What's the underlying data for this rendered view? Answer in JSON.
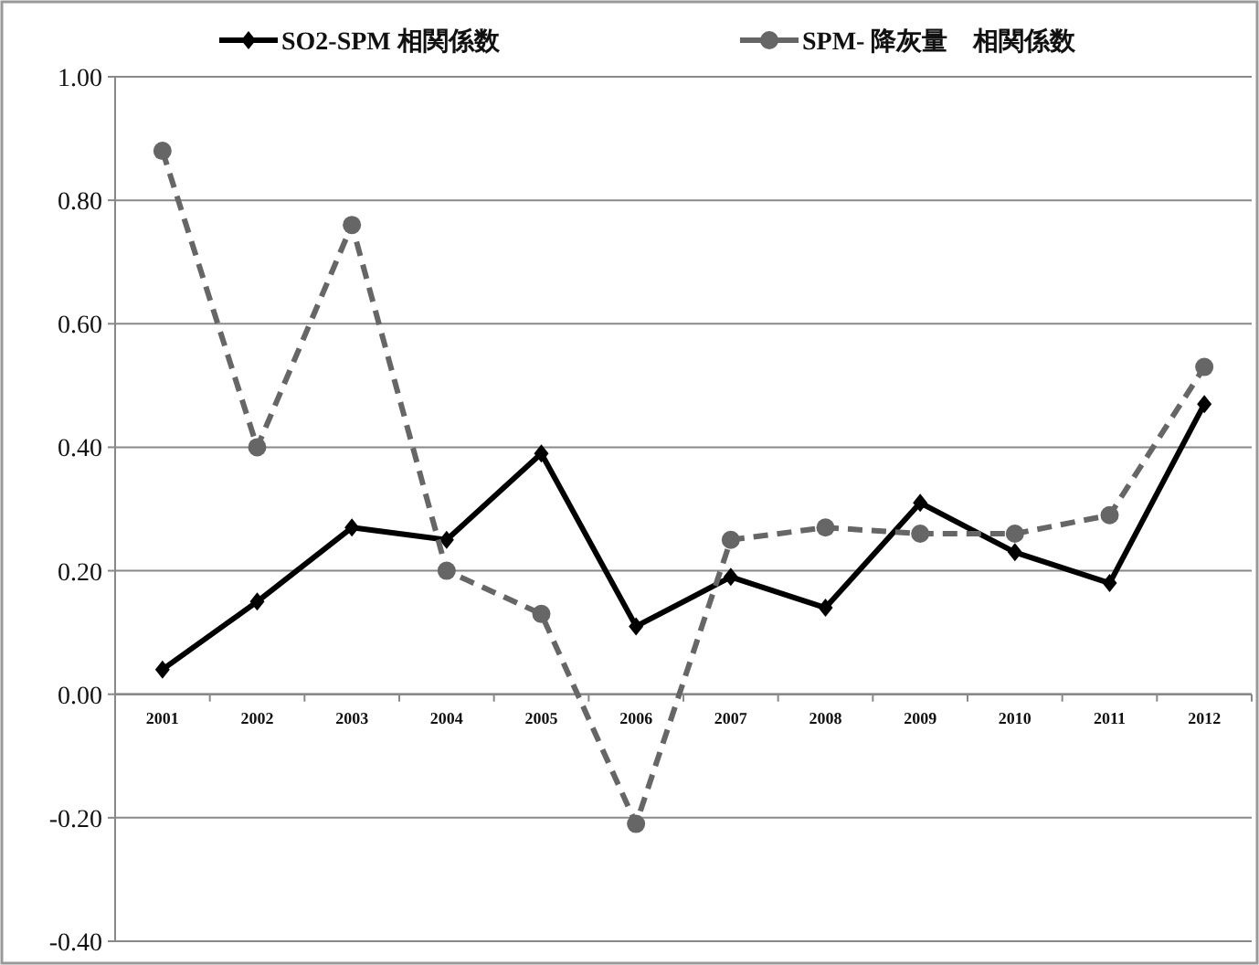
{
  "chart_data": {
    "type": "line",
    "categories": [
      "2001",
      "2002",
      "2003",
      "2004",
      "2005",
      "2006",
      "2007",
      "2008",
      "2009",
      "2010",
      "2011",
      "2012"
    ],
    "series": [
      {
        "name": "SO2-SPM  相関係数",
        "color": "#000000",
        "marker": "diamond",
        "line_style": "solid",
        "values": [
          0.04,
          0.15,
          0.27,
          0.25,
          0.39,
          0.11,
          0.19,
          0.14,
          0.31,
          0.23,
          0.18,
          0.47
        ]
      },
      {
        "name": "SPM- 降灰量　相関係数",
        "color": "#666666",
        "marker": "circle",
        "line_style": "dashed",
        "values": [
          0.88,
          0.4,
          0.76,
          0.2,
          0.13,
          -0.21,
          0.25,
          0.27,
          0.26,
          0.26,
          0.29,
          0.53
        ]
      }
    ],
    "ylim": [
      -0.4,
      1.0
    ],
    "yticks": [
      {
        "value": -0.4,
        "label": "-0.40"
      },
      {
        "value": -0.2,
        "label": "-0.20"
      },
      {
        "value": 0,
        "label": "0.00"
      },
      {
        "value": 0.2,
        "label": "0.20"
      },
      {
        "value": 0.4,
        "label": "0.40"
      },
      {
        "value": 0.6,
        "label": "0.60"
      },
      {
        "value": 0.8,
        "label": "0.80"
      },
      {
        "value": 1.0,
        "label": "1.00"
      }
    ],
    "grid": "y",
    "legend": "top"
  }
}
